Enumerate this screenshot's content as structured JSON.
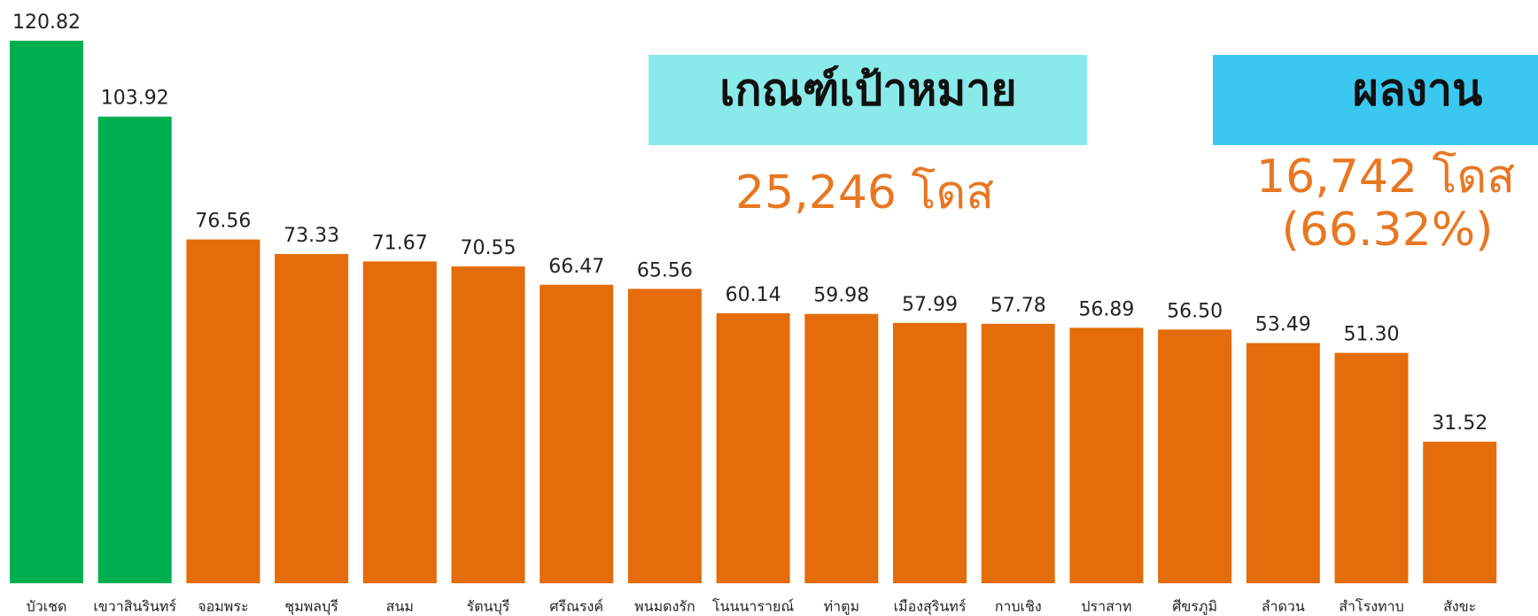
{
  "chart_data": {
    "type": "bar",
    "categories": [
      "บัวเชด",
      "เขวาสินรินทร์",
      "จอมพระ",
      "ชุมพลบุรี",
      "สนม",
      "รัตนบุรี",
      "ศรีณรงค์",
      "พนมดงรัก",
      "โนนนารายณ์",
      "ท่าตูม",
      "เมืองสุรินทร์",
      "กาบเชิง",
      "ปราสาท",
      "ศีขรภูมิ",
      "ลำดวน",
      "สำโรงทาบ",
      "สังขะ"
    ],
    "values": [
      120.82,
      103.92,
      76.56,
      73.33,
      71.67,
      70.55,
      66.47,
      65.56,
      60.14,
      59.98,
      57.99,
      57.78,
      56.89,
      56.5,
      53.49,
      51.3,
      31.52
    ],
    "value_labels": [
      "120.82",
      "103.92",
      "76.56",
      "73.33",
      "71.67",
      "70.55",
      "66.47",
      "65.56",
      "60.14",
      "59.98",
      "57.99",
      "57.78",
      "56.89",
      "56.50",
      "53.49",
      "51.30",
      "31.52"
    ],
    "colors": [
      "#00b050",
      "#00b050",
      "#e46c0a",
      "#e46c0a",
      "#e46c0a",
      "#e46c0a",
      "#e46c0a",
      "#e46c0a",
      "#e46c0a",
      "#e46c0a",
      "#e46c0a",
      "#e46c0a",
      "#e46c0a",
      "#e46c0a",
      "#e46c0a",
      "#e46c0a",
      "#e46c0a"
    ],
    "annotations": {
      "target_title": "เกณฑ์เป้าหมาย",
      "target_value": "25,246 โดส",
      "result_title": "ผลงาน",
      "result_value": "16,742 โดส",
      "result_percent": "(66.32%)"
    }
  }
}
